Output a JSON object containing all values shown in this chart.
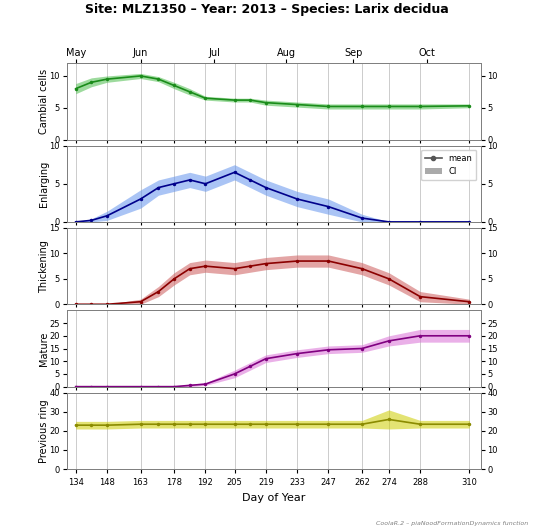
{
  "title": "Site: MLZ1350 – Year: 2013 – Species: Larix decidua",
  "xlabel": "Day of Year",
  "x_ticks": [
    134,
    148,
    163,
    178,
    192,
    205,
    219,
    233,
    247,
    262,
    274,
    288,
    310
  ],
  "month_positions": {
    "May": 134,
    "Jun": 163,
    "Jul": 196,
    "Aug": 228,
    "Sep": 258,
    "Oct": 291
  },
  "x": [
    134,
    141,
    148,
    163,
    171,
    178,
    185,
    192,
    205,
    212,
    219,
    233,
    247,
    262,
    274,
    288,
    310
  ],
  "panels": [
    {
      "name": "Cambial cells",
      "ylim": [
        0,
        12
      ],
      "yticks": [
        0,
        5,
        10
      ],
      "color_line": "#1a8c1a",
      "color_fill": "#4dbd4d",
      "mean": [
        8.0,
        9.0,
        9.5,
        10.0,
        9.5,
        8.5,
        7.5,
        6.5,
        6.2,
        6.2,
        5.8,
        5.5,
        5.2,
        5.2,
        5.2,
        5.2,
        5.3
      ],
      "ci_low": [
        7.2,
        8.3,
        9.0,
        9.6,
        9.1,
        8.0,
        7.0,
        6.2,
        5.9,
        5.9,
        5.4,
        5.1,
        4.8,
        4.8,
        4.8,
        4.8,
        5.0
      ],
      "ci_high": [
        8.8,
        9.7,
        10.0,
        10.4,
        9.9,
        9.0,
        8.0,
        6.8,
        6.5,
        6.5,
        6.2,
        5.9,
        5.6,
        5.6,
        5.6,
        5.6,
        5.6
      ]
    },
    {
      "name": "Enlarging",
      "ylim": [
        0,
        10
      ],
      "yticks": [
        0,
        5,
        10
      ],
      "color_line": "#00008b",
      "color_fill": "#6495ed",
      "mean": [
        0.0,
        0.2,
        0.8,
        3.0,
        4.5,
        5.0,
        5.5,
        5.0,
        6.5,
        5.5,
        4.5,
        3.0,
        2.0,
        0.5,
        0.0,
        0.0,
        0.0
      ],
      "ci_low": [
        0.0,
        0.0,
        0.2,
        1.8,
        3.5,
        4.0,
        4.5,
        4.0,
        5.5,
        4.5,
        3.5,
        2.0,
        1.0,
        0.0,
        0.0,
        0.0,
        0.0
      ],
      "ci_high": [
        0.0,
        0.4,
        1.4,
        4.2,
        5.5,
        6.0,
        6.5,
        6.0,
        7.5,
        6.5,
        5.5,
        4.0,
        3.0,
        1.0,
        0.0,
        0.0,
        0.0
      ]
    },
    {
      "name": "Thickening",
      "ylim": [
        0,
        15
      ],
      "yticks": [
        0,
        5,
        10,
        15
      ],
      "color_line": "#8b0000",
      "color_fill": "#cd5c5c",
      "mean": [
        0.0,
        0.0,
        0.0,
        0.5,
        2.5,
        5.0,
        7.0,
        7.5,
        7.0,
        7.5,
        8.0,
        8.5,
        8.5,
        7.0,
        5.0,
        1.5,
        0.5
      ],
      "ci_low": [
        0.0,
        0.0,
        0.0,
        0.0,
        1.5,
        3.8,
        5.8,
        6.3,
        5.8,
        6.3,
        6.8,
        7.3,
        7.3,
        5.8,
        3.8,
        0.5,
        0.0
      ],
      "ci_high": [
        0.0,
        0.0,
        0.0,
        1.0,
        3.5,
        6.2,
        8.2,
        8.7,
        8.2,
        8.7,
        9.2,
        9.7,
        9.7,
        8.2,
        6.2,
        2.5,
        1.0
      ]
    },
    {
      "name": "Mature",
      "ylim": [
        0,
        30
      ],
      "yticks": [
        0,
        5,
        10,
        15,
        20,
        25
      ],
      "color_line": "#800080",
      "color_fill": "#da70d6",
      "mean": [
        0.0,
        0.0,
        0.0,
        0.0,
        0.0,
        0.0,
        0.5,
        1.0,
        5.0,
        8.0,
        11.0,
        13.0,
        14.5,
        15.0,
        18.0,
        20.0,
        20.0
      ],
      "ci_low": [
        0.0,
        0.0,
        0.0,
        0.0,
        0.0,
        0.0,
        0.0,
        0.5,
        3.5,
        6.5,
        9.5,
        11.5,
        13.0,
        13.5,
        16.0,
        17.5,
        17.5
      ],
      "ci_high": [
        0.0,
        0.0,
        0.0,
        0.0,
        0.0,
        0.0,
        1.0,
        1.5,
        6.5,
        9.5,
        12.5,
        14.5,
        16.0,
        16.5,
        20.0,
        22.5,
        22.5
      ]
    },
    {
      "name": "Previous ring",
      "ylim": [
        0,
        40
      ],
      "yticks": [
        0,
        10,
        20,
        30,
        40
      ],
      "color_line": "#8b8b00",
      "color_fill": "#cdcd00",
      "mean": [
        23.0,
        23.0,
        23.0,
        23.5,
        23.5,
        23.5,
        23.5,
        23.5,
        23.5,
        23.5,
        23.5,
        23.5,
        23.5,
        23.5,
        26.0,
        23.5,
        23.5
      ],
      "ci_low": [
        21.0,
        21.0,
        21.0,
        21.5,
        21.5,
        21.5,
        21.5,
        21.5,
        21.5,
        21.5,
        21.5,
        21.5,
        21.5,
        21.5,
        21.0,
        21.5,
        21.5
      ],
      "ci_high": [
        25.0,
        25.0,
        25.0,
        25.5,
        25.5,
        25.5,
        25.5,
        25.5,
        25.5,
        25.5,
        25.5,
        25.5,
        25.5,
        25.5,
        31.0,
        25.5,
        25.5
      ]
    }
  ],
  "bg_color": "#ffffff",
  "grid_color": "#cccccc",
  "footnote": "CoolaR.2 – piaNoodFormationDynamics function"
}
